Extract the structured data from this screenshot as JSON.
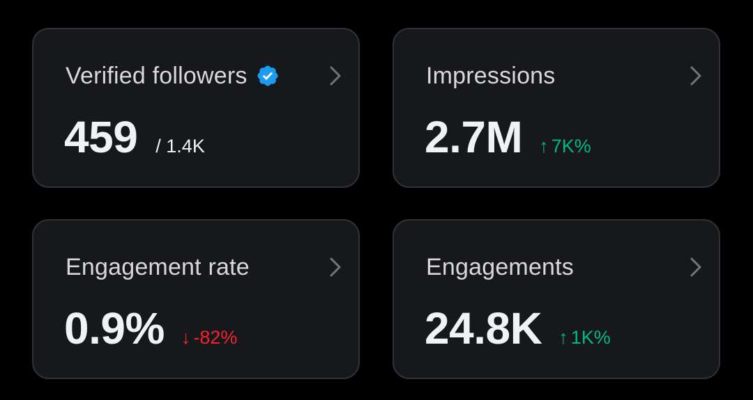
{
  "cards": [
    {
      "title": "Verified followers",
      "verified_icon": "verified-badge-icon",
      "value": "459",
      "sub": "/ 1.4K"
    },
    {
      "title": "Impressions",
      "value": "2.7M",
      "delta_arrow": "↑",
      "delta": "7K%",
      "delta_direction": "up"
    },
    {
      "title": "Engagement rate",
      "value": "0.9%",
      "delta_arrow": "↓",
      "delta": "-82%",
      "delta_direction": "down"
    },
    {
      "title": "Engagements",
      "value": "24.8K",
      "delta_arrow": "↑",
      "delta": "1K%",
      "delta_direction": "up"
    }
  ],
  "colors": {
    "background": "#000000",
    "card": "#16181c",
    "border": "#2f3336",
    "positive": "#00ba7c",
    "negative": "#f4212e",
    "verified": "#1d9bf0"
  }
}
